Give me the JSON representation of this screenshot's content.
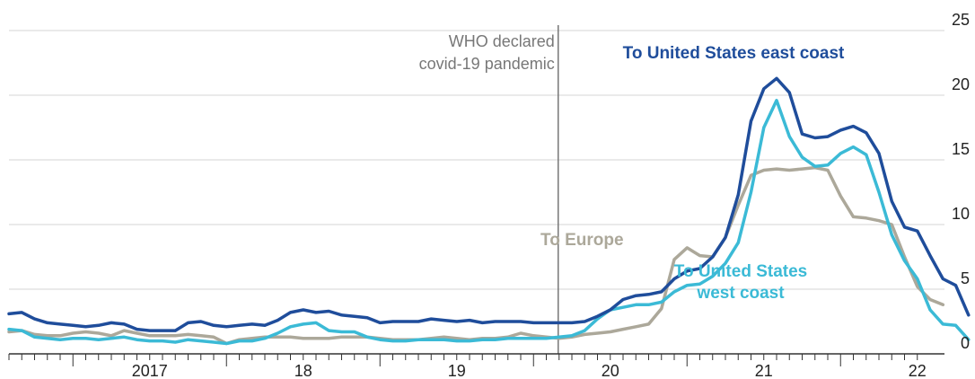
{
  "chart_data": {
    "type": "line",
    "title": "",
    "xlabel": "",
    "ylabel": "",
    "ylim": [
      0,
      25
    ],
    "yticks": [
      0,
      5,
      10,
      15,
      20,
      25
    ],
    "grid": true,
    "x_start": "2016-08",
    "x_end": "2022-07",
    "x_tick_labels": [
      {
        "label": "2017",
        "year": 2017
      },
      {
        "label": "18",
        "year": 2018
      },
      {
        "label": "19",
        "year": 2019
      },
      {
        "label": "20",
        "year": 2020
      },
      {
        "label": "21",
        "year": 2021
      },
      {
        "label": "22",
        "year": 2022
      }
    ],
    "annotation": {
      "date": "2020-03",
      "lines": [
        "WHO declared",
        "covid-19 pandemic"
      ]
    },
    "series": [
      {
        "name": "To Europe",
        "label_lines": [
          "To Europe"
        ],
        "color": "#aca89a",
        "points": [
          [
            "2016-08",
            1.7
          ],
          [
            "2016-09",
            1.8
          ],
          [
            "2016-10",
            1.5
          ],
          [
            "2016-11",
            1.4
          ],
          [
            "2016-12",
            1.4
          ],
          [
            "2017-01",
            1.6
          ],
          [
            "2017-02",
            1.7
          ],
          [
            "2017-03",
            1.6
          ],
          [
            "2017-04",
            1.4
          ],
          [
            "2017-05",
            1.8
          ],
          [
            "2017-06",
            1.6
          ],
          [
            "2017-07",
            1.4
          ],
          [
            "2017-08",
            1.4
          ],
          [
            "2017-09",
            1.4
          ],
          [
            "2017-10",
            1.5
          ],
          [
            "2017-11",
            1.4
          ],
          [
            "2017-12",
            1.3
          ],
          [
            "2018-01",
            0.8
          ],
          [
            "2018-02",
            1.1
          ],
          [
            "2018-03",
            1.2
          ],
          [
            "2018-04",
            1.3
          ],
          [
            "2018-05",
            1.3
          ],
          [
            "2018-06",
            1.3
          ],
          [
            "2018-07",
            1.2
          ],
          [
            "2018-08",
            1.2
          ],
          [
            "2018-09",
            1.2
          ],
          [
            "2018-10",
            1.3
          ],
          [
            "2018-11",
            1.3
          ],
          [
            "2018-12",
            1.3
          ],
          [
            "2019-01",
            1.2
          ],
          [
            "2019-02",
            1.1
          ],
          [
            "2019-03",
            1.1
          ],
          [
            "2019-04",
            1.1
          ],
          [
            "2019-05",
            1.2
          ],
          [
            "2019-06",
            1.3
          ],
          [
            "2019-07",
            1.2
          ],
          [
            "2019-08",
            1.1
          ],
          [
            "2019-09",
            1.2
          ],
          [
            "2019-10",
            1.2
          ],
          [
            "2019-11",
            1.3
          ],
          [
            "2019-12",
            1.6
          ],
          [
            "2020-01",
            1.4
          ],
          [
            "2020-02",
            1.3
          ],
          [
            "2020-03",
            1.2
          ],
          [
            "2020-04",
            1.3
          ],
          [
            "2020-05",
            1.5
          ],
          [
            "2020-06",
            1.6
          ],
          [
            "2020-07",
            1.7
          ],
          [
            "2020-08",
            1.9
          ],
          [
            "2020-09",
            2.1
          ],
          [
            "2020-10",
            2.3
          ],
          [
            "2020-11",
            3.5
          ],
          [
            "2020-12",
            7.3
          ],
          [
            "2021-01",
            8.2
          ],
          [
            "2021-02",
            7.6
          ],
          [
            "2021-03",
            7.5
          ],
          [
            "2021-04",
            9.0
          ],
          [
            "2021-05",
            11.5
          ],
          [
            "2021-06",
            13.8
          ],
          [
            "2021-07",
            14.2
          ],
          [
            "2021-08",
            14.3
          ],
          [
            "2021-09",
            14.2
          ],
          [
            "2021-10",
            14.3
          ],
          [
            "2021-11",
            14.4
          ],
          [
            "2021-12",
            14.2
          ],
          [
            "2022-01",
            12.2
          ],
          [
            "2022-02",
            10.6
          ],
          [
            "2022-03",
            10.5
          ],
          [
            "2022-04",
            10.3
          ],
          [
            "2022-05",
            10.0
          ],
          [
            "2022-06",
            7.5
          ],
          [
            "2022-07",
            5.2
          ],
          [
            "2022-08",
            4.2
          ],
          [
            "2022-09",
            3.8
          ]
        ]
      },
      {
        "name": "To United States west coast",
        "label_lines": [
          "To United States",
          "west coast"
        ],
        "color": "#3bbad6",
        "points": [
          [
            "2016-08",
            1.9
          ],
          [
            "2016-09",
            1.8
          ],
          [
            "2016-10",
            1.3
          ],
          [
            "2016-11",
            1.2
          ],
          [
            "2016-12",
            1.1
          ],
          [
            "2017-01",
            1.2
          ],
          [
            "2017-02",
            1.2
          ],
          [
            "2017-03",
            1.1
          ],
          [
            "2017-04",
            1.2
          ],
          [
            "2017-05",
            1.3
          ],
          [
            "2017-06",
            1.1
          ],
          [
            "2017-07",
            1.0
          ],
          [
            "2017-08",
            1.0
          ],
          [
            "2017-09",
            0.9
          ],
          [
            "2017-10",
            1.1
          ],
          [
            "2017-11",
            1.0
          ],
          [
            "2017-12",
            0.9
          ],
          [
            "2018-01",
            0.8
          ],
          [
            "2018-02",
            1.0
          ],
          [
            "2018-03",
            1.0
          ],
          [
            "2018-04",
            1.2
          ],
          [
            "2018-05",
            1.6
          ],
          [
            "2018-06",
            2.1
          ],
          [
            "2018-07",
            2.3
          ],
          [
            "2018-08",
            2.4
          ],
          [
            "2018-09",
            1.8
          ],
          [
            "2018-10",
            1.7
          ],
          [
            "2018-11",
            1.7
          ],
          [
            "2018-12",
            1.3
          ],
          [
            "2019-01",
            1.1
          ],
          [
            "2019-02",
            1.0
          ],
          [
            "2019-03",
            1.0
          ],
          [
            "2019-04",
            1.1
          ],
          [
            "2019-05",
            1.1
          ],
          [
            "2019-06",
            1.1
          ],
          [
            "2019-07",
            1.0
          ],
          [
            "2019-08",
            1.0
          ],
          [
            "2019-09",
            1.1
          ],
          [
            "2019-10",
            1.1
          ],
          [
            "2019-11",
            1.2
          ],
          [
            "2019-12",
            1.2
          ],
          [
            "2020-01",
            1.2
          ],
          [
            "2020-02",
            1.2
          ],
          [
            "2020-03",
            1.3
          ],
          [
            "2020-04",
            1.4
          ],
          [
            "2020-05",
            1.8
          ],
          [
            "2020-06",
            2.7
          ],
          [
            "2020-07",
            3.4
          ],
          [
            "2020-08",
            3.6
          ],
          [
            "2020-09",
            3.8
          ],
          [
            "2020-10",
            3.8
          ],
          [
            "2020-11",
            4.0
          ],
          [
            "2020-12",
            4.8
          ],
          [
            "2021-01",
            5.3
          ],
          [
            "2021-02",
            5.4
          ],
          [
            "2021-03",
            6.0
          ],
          [
            "2021-04",
            7.0
          ],
          [
            "2021-05",
            8.6
          ],
          [
            "2021-06",
            12.5
          ],
          [
            "2021-07",
            17.5
          ],
          [
            "2021-08",
            19.6
          ],
          [
            "2021-09",
            16.8
          ],
          [
            "2021-10",
            15.2
          ],
          [
            "2021-11",
            14.5
          ],
          [
            "2021-12",
            14.6
          ],
          [
            "2022-01",
            15.5
          ],
          [
            "2022-02",
            16.0
          ],
          [
            "2022-03",
            15.4
          ],
          [
            "2022-04",
            12.5
          ],
          [
            "2022-05",
            9.2
          ],
          [
            "2022-06",
            7.2
          ],
          [
            "2022-07",
            5.8
          ],
          [
            "2022-08",
            3.4
          ],
          [
            "2022-09",
            2.3
          ],
          [
            "2022-10",
            2.2
          ],
          [
            "2022-11",
            1.1
          ]
        ]
      },
      {
        "name": "To United States east coast",
        "label_lines": [
          "To United States east coast"
        ],
        "color": "#1f4d9b",
        "points": [
          [
            "2016-08",
            3.1
          ],
          [
            "2016-09",
            3.2
          ],
          [
            "2016-10",
            2.7
          ],
          [
            "2016-11",
            2.4
          ],
          [
            "2016-12",
            2.3
          ],
          [
            "2017-01",
            2.2
          ],
          [
            "2017-02",
            2.1
          ],
          [
            "2017-03",
            2.2
          ],
          [
            "2017-04",
            2.4
          ],
          [
            "2017-05",
            2.3
          ],
          [
            "2017-06",
            1.9
          ],
          [
            "2017-07",
            1.8
          ],
          [
            "2017-08",
            1.8
          ],
          [
            "2017-09",
            1.8
          ],
          [
            "2017-10",
            2.4
          ],
          [
            "2017-11",
            2.5
          ],
          [
            "2017-12",
            2.2
          ],
          [
            "2018-01",
            2.1
          ],
          [
            "2018-02",
            2.2
          ],
          [
            "2018-03",
            2.3
          ],
          [
            "2018-04",
            2.2
          ],
          [
            "2018-05",
            2.6
          ],
          [
            "2018-06",
            3.2
          ],
          [
            "2018-07",
            3.4
          ],
          [
            "2018-08",
            3.2
          ],
          [
            "2018-09",
            3.3
          ],
          [
            "2018-10",
            3.0
          ],
          [
            "2018-11",
            2.9
          ],
          [
            "2018-12",
            2.8
          ],
          [
            "2019-01",
            2.4
          ],
          [
            "2019-02",
            2.5
          ],
          [
            "2019-03",
            2.5
          ],
          [
            "2019-04",
            2.5
          ],
          [
            "2019-05",
            2.7
          ],
          [
            "2019-06",
            2.6
          ],
          [
            "2019-07",
            2.5
          ],
          [
            "2019-08",
            2.6
          ],
          [
            "2019-09",
            2.4
          ],
          [
            "2019-10",
            2.5
          ],
          [
            "2019-11",
            2.5
          ],
          [
            "2019-12",
            2.5
          ],
          [
            "2020-01",
            2.4
          ],
          [
            "2020-02",
            2.4
          ],
          [
            "2020-03",
            2.4
          ],
          [
            "2020-04",
            2.4
          ],
          [
            "2020-05",
            2.5
          ],
          [
            "2020-06",
            2.9
          ],
          [
            "2020-07",
            3.4
          ],
          [
            "2020-08",
            4.2
          ],
          [
            "2020-09",
            4.5
          ],
          [
            "2020-10",
            4.6
          ],
          [
            "2020-11",
            4.8
          ],
          [
            "2020-12",
            5.8
          ],
          [
            "2021-01",
            6.4
          ],
          [
            "2021-02",
            6.6
          ],
          [
            "2021-03",
            7.5
          ],
          [
            "2021-04",
            9.0
          ],
          [
            "2021-05",
            12.3
          ],
          [
            "2021-06",
            18.0
          ],
          [
            "2021-07",
            20.5
          ],
          [
            "2021-08",
            21.3
          ],
          [
            "2021-09",
            20.2
          ],
          [
            "2021-10",
            17.0
          ],
          [
            "2021-11",
            16.7
          ],
          [
            "2021-12",
            16.8
          ],
          [
            "2022-01",
            17.3
          ],
          [
            "2022-02",
            17.6
          ],
          [
            "2022-03",
            17.1
          ],
          [
            "2022-04",
            15.5
          ],
          [
            "2022-05",
            11.8
          ],
          [
            "2022-06",
            9.8
          ],
          [
            "2022-07",
            9.5
          ],
          [
            "2022-08",
            7.6
          ],
          [
            "2022-09",
            5.8
          ],
          [
            "2022-10",
            5.3
          ],
          [
            "2022-11",
            3.0
          ]
        ]
      }
    ]
  }
}
